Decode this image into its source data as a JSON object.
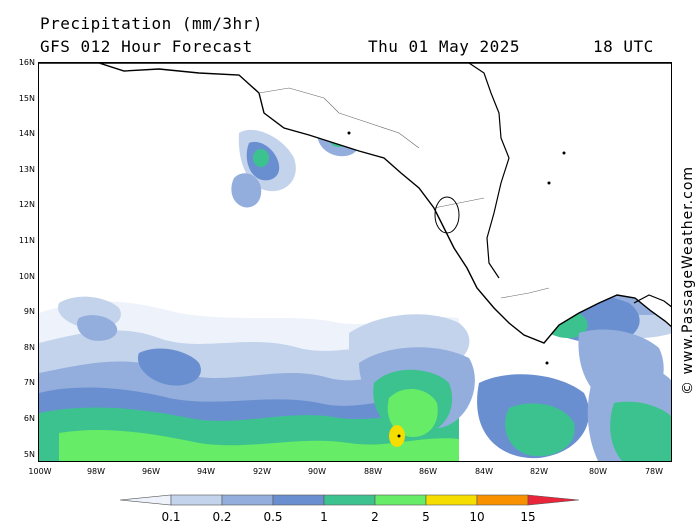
{
  "header": {
    "title": "Precipitation (mm/3hr)",
    "model": "GFS 012 Hour Forecast",
    "date": "Thu 01 May 2025",
    "time": "18 UTC"
  },
  "credit": "© www.PassageWeather.com",
  "axes": {
    "lat_labels": [
      "16N",
      "15N",
      "14N",
      "13N",
      "12N",
      "11N",
      "10N",
      "9N",
      "8N",
      "7N",
      "6N",
      "5N"
    ],
    "lon_labels": [
      "100W",
      "98W",
      "96W",
      "94W",
      "92W",
      "90W",
      "88W",
      "86W",
      "84W",
      "82W",
      "80W",
      "78W"
    ]
  },
  "legend": {
    "levels": [
      "0.1",
      "0.2",
      "0.5",
      "1",
      "2",
      "5",
      "10",
      "15"
    ],
    "colors": [
      "#eef3fb",
      "#c3d3ec",
      "#93aedc",
      "#6a8fd0",
      "#3cc28f",
      "#66ec66",
      "#f5dd00",
      "#f99000",
      "#e8253a"
    ]
  },
  "map": {
    "land_color": "#ffffff",
    "border_color": "#000000",
    "region": "Central America and eastern Pacific, 5N-16N, 100W-78W"
  }
}
